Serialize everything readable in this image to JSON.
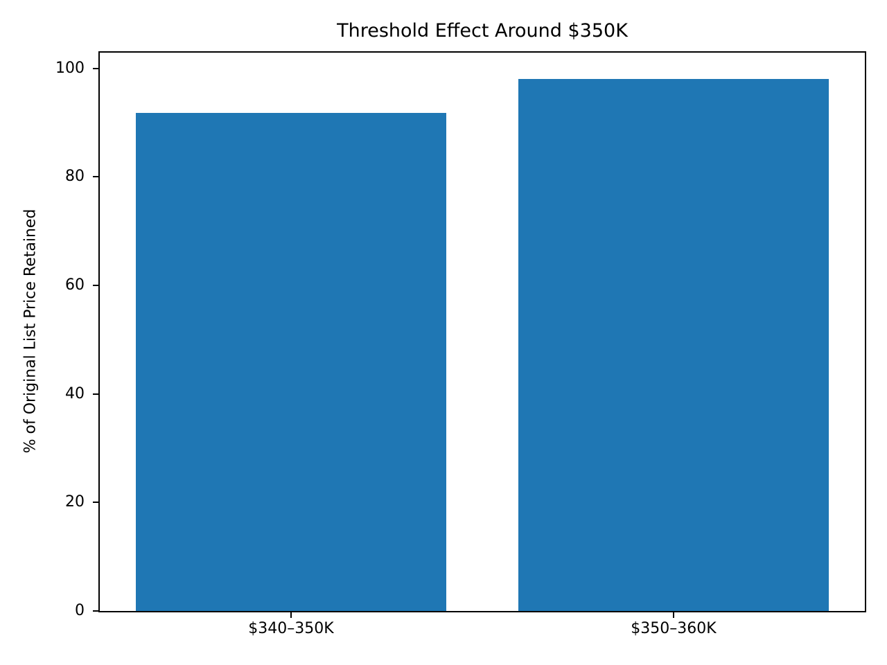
{
  "page": {
    "background": "#ffffff"
  },
  "chart_data": {
    "type": "bar",
    "title": "Threshold Effect Around $350K",
    "xlabel": "",
    "ylabel": "% of Original List Price Retained",
    "categories": [
      "$340–350K",
      "$350–360K"
    ],
    "values": [
      91.8,
      98.0
    ],
    "ylim": [
      0,
      102.9
    ],
    "yticks": [
      0,
      20,
      40,
      60,
      80,
      100
    ],
    "bar_color": "#1f77b4",
    "axis_color": "#000000",
    "text_color": "#000000",
    "grid": false,
    "legend": null
  }
}
